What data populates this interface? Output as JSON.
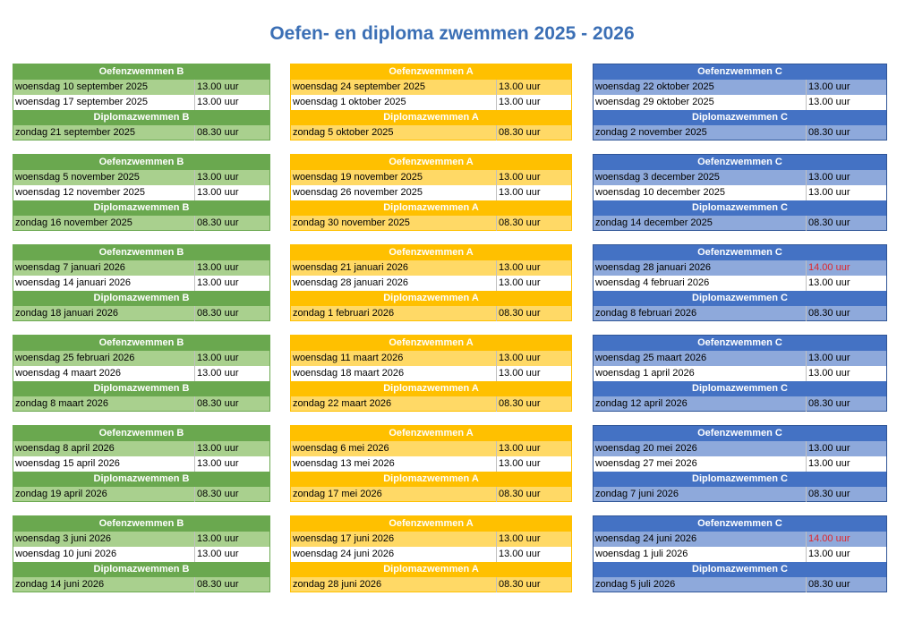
{
  "title": "Oefen- en diploma zwemmen 2025 - 2026",
  "colors": {
    "green": "#6aa84f",
    "yellow": "#ffc000",
    "blue": "#4472c4",
    "red": "#e0262b"
  },
  "columns": [
    {
      "theme": "green",
      "blocks": [
        {
          "practice_header": "Oefenzwemmen B",
          "practice": [
            {
              "date": "woensdag 10 september 2025",
              "time": "13.00 uur"
            },
            {
              "date": "woensdag 17 september 2025",
              "time": "13.00 uur"
            }
          ],
          "diploma_header": "Diplomazwemmen B",
          "diploma": {
            "date": "zondag 21 september 2025",
            "time": "08.30 uur"
          }
        },
        {
          "practice_header": "Oefenzwemmen B",
          "practice": [
            {
              "date": "woensdag 5 november 2025",
              "time": "13.00 uur"
            },
            {
              "date": "woensdag 12 november 2025",
              "time": "13.00 uur"
            }
          ],
          "diploma_header": "Diplomazwemmen B",
          "diploma": {
            "date": "zondag 16 november 2025",
            "time": "08.30 uur"
          }
        },
        {
          "practice_header": "Oefenzwemmen B",
          "practice": [
            {
              "date": "woensdag 7 januari 2026",
              "time": "13.00 uur"
            },
            {
              "date": "woensdag 14 januari 2026",
              "time": "13.00 uur"
            }
          ],
          "diploma_header": "Diplomazwemmen B",
          "diploma": {
            "date": "zondag 18 januari 2026",
            "time": "08.30 uur"
          }
        },
        {
          "practice_header": "Oefenzwemmen B",
          "practice": [
            {
              "date": "woensdag 25 februari 2026",
              "time": "13.00 uur"
            },
            {
              "date": "woensdag 4 maart 2026",
              "time": "13.00 uur"
            }
          ],
          "diploma_header": "Diplomazwemmen B",
          "diploma": {
            "date": "zondag 8 maart 2026",
            "time": "08.30 uur"
          }
        },
        {
          "practice_header": "Oefenzwemmen B",
          "practice": [
            {
              "date": "woensdag 8 april 2026",
              "time": "13.00 uur"
            },
            {
              "date": "woensdag 15 april 2026",
              "time": "13.00 uur"
            }
          ],
          "diploma_header": "Diplomazwemmen B",
          "diploma": {
            "date": "zondag 19 april 2026",
            "time": "08.30 uur"
          }
        },
        {
          "practice_header": "Oefenzwemmen B",
          "practice": [
            {
              "date": "woensdag 3 juni 2026",
              "time": "13.00 uur"
            },
            {
              "date": "woensdag 10 juni 2026",
              "time": "13.00 uur"
            }
          ],
          "diploma_header": "Diplomazwemmen B",
          "diploma": {
            "date": "zondag 14 juni 2026",
            "time": "08.30 uur"
          }
        }
      ]
    },
    {
      "theme": "yellow",
      "blocks": [
        {
          "practice_header": "Oefenzwemmen A",
          "practice": [
            {
              "date": "woensdag 24 september 2025",
              "time": "13.00 uur"
            },
            {
              "date": "woensdag 1 oktober 2025",
              "time": "13.00 uur"
            }
          ],
          "diploma_header": "Diplomazwemmen A",
          "diploma": {
            "date": "zondag 5 oktober 2025",
            "time": "08.30 uur"
          }
        },
        {
          "practice_header": "Oefenzwemmen A",
          "practice": [
            {
              "date": "woensdag 19 november 2025",
              "time": "13.00 uur"
            },
            {
              "date": "woensdag 26 november 2025",
              "time": "13.00 uur"
            }
          ],
          "diploma_header": "Diplomazwemmen A",
          "diploma": {
            "date": "zondag 30 november 2025",
            "time": "08.30 uur"
          }
        },
        {
          "practice_header": "Oefenzwemmen A",
          "practice": [
            {
              "date": "woensdag 21 januari 2026",
              "time": "13.00 uur"
            },
            {
              "date": "woensdag 28 januari 2026",
              "time": "13.00 uur"
            }
          ],
          "diploma_header": "Diplomazwemmen A",
          "diploma": {
            "date": "zondag 1 februari 2026",
            "time": "08.30 uur"
          }
        },
        {
          "practice_header": "Oefenzwemmen A",
          "practice": [
            {
              "date": "woensdag 11 maart 2026",
              "time": "13.00 uur"
            },
            {
              "date": "woensdag 18 maart 2026",
              "time": "13.00 uur"
            }
          ],
          "diploma_header": "Diplomazwemmen A",
          "diploma": {
            "date": "zondag 22 maart 2026",
            "time": "08.30 uur"
          }
        },
        {
          "practice_header": "Oefenzwemmen A",
          "practice": [
            {
              "date": "woensdag 6 mei 2026",
              "time": "13.00 uur"
            },
            {
              "date": "woensdag 13 mei 2026",
              "time": "13.00 uur"
            }
          ],
          "diploma_header": "Diplomazwemmen A",
          "diploma": {
            "date": "zondag 17 mei 2026",
            "time": "08.30 uur"
          }
        },
        {
          "practice_header": "Oefenzwemmen A",
          "practice": [
            {
              "date": "woensdag 17 juni 2026",
              "time": "13.00 uur"
            },
            {
              "date": "woensdag 24 juni 2026",
              "time": "13.00 uur"
            }
          ],
          "diploma_header": "Diplomazwemmen A",
          "diploma": {
            "date": "zondag 28 juni 2026",
            "time": "08.30 uur"
          }
        }
      ]
    },
    {
      "theme": "blue",
      "blocks": [
        {
          "practice_header": "Oefenzwemmen C",
          "practice": [
            {
              "date": "woensdag 22 oktober 2025",
              "time": "13.00 uur"
            },
            {
              "date": "woensdag 29 oktober 2025",
              "time": "13.00 uur"
            }
          ],
          "diploma_header": "Diplomazwemmen C",
          "diploma": {
            "date": "zondag 2 november 2025",
            "time": "08.30 uur"
          }
        },
        {
          "practice_header": "Oefenzwemmen C",
          "practice": [
            {
              "date": "woensdag 3 december 2025",
              "time": "13.00 uur"
            },
            {
              "date": "woensdag 10 december 2025",
              "time": "13.00 uur"
            }
          ],
          "diploma_header": "Diplomazwemmen C",
          "diploma": {
            "date": "zondag 14 december 2025",
            "time": "08.30 uur"
          }
        },
        {
          "practice_header": "Oefenzwemmen C",
          "practice": [
            {
              "date": "woensdag 28 januari 2026",
              "time": "14.00 uur",
              "highlight": true
            },
            {
              "date": "woensdag 4 februari 2026",
              "time": "13.00 uur"
            }
          ],
          "diploma_header": "Diplomazwemmen C",
          "diploma": {
            "date": "zondag 8 februari 2026",
            "time": "08.30 uur"
          }
        },
        {
          "practice_header": "Oefenzwemmen C",
          "practice": [
            {
              "date": "woensdag 25 maart 2026",
              "time": "13.00 uur"
            },
            {
              "date": "woensdag 1 april 2026",
              "time": "13.00 uur"
            }
          ],
          "diploma_header": "Diplomazwemmen C",
          "diploma": {
            "date": "zondag 12 april 2026",
            "time": "08.30 uur"
          }
        },
        {
          "practice_header": "Oefenzwemmen C",
          "practice": [
            {
              "date": "woensdag 20 mei 2026",
              "time": "13.00 uur"
            },
            {
              "date": "woensdag 27 mei 2026",
              "time": "13.00 uur"
            }
          ],
          "diploma_header": "Diplomazwemmen C",
          "diploma": {
            "date": "zondag 7 juni 2026",
            "time": "08.30 uur"
          }
        },
        {
          "practice_header": "Oefenzwemmen C",
          "practice": [
            {
              "date": "woensdag 24 juni 2026",
              "time": "14.00 uur",
              "highlight": true
            },
            {
              "date": "woensdag 1 juli 2026",
              "time": "13.00 uur"
            }
          ],
          "diploma_header": "Diplomazwemmen C",
          "diploma": {
            "date": "zondag 5 juli 2026",
            "time": "08.30 uur"
          }
        }
      ]
    }
  ]
}
